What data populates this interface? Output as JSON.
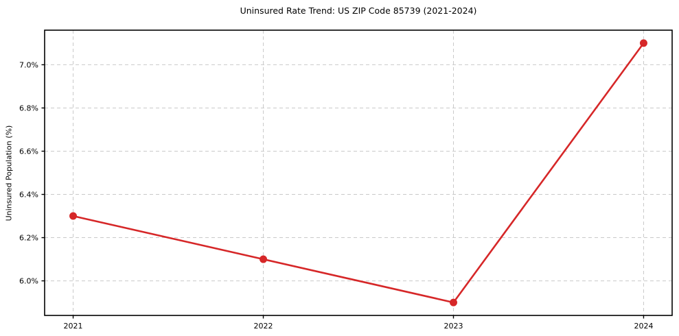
{
  "chart_data": {
    "type": "line",
    "title": "Uninsured Rate Trend: US ZIP Code 85739 (2021-2024)",
    "xlabel": "",
    "ylabel": "Uninsured Population (%)",
    "categories": [
      "2021",
      "2022",
      "2023",
      "2024"
    ],
    "x": [
      2021,
      2022,
      2023,
      2024
    ],
    "series": [
      {
        "name": "Uninsured Rate",
        "values": [
          6.3,
          6.1,
          5.9,
          7.1
        ]
      }
    ],
    "y_ticks": [
      {
        "value": 6.0,
        "label": "6.0%"
      },
      {
        "value": 6.2,
        "label": "6.2%"
      },
      {
        "value": 6.4,
        "label": "6.4%"
      },
      {
        "value": 6.6,
        "label": "6.6%"
      },
      {
        "value": 6.8,
        "label": "6.8%"
      },
      {
        "value": 7.0,
        "label": "7.0%"
      }
    ],
    "xlim": [
      2020.85,
      2024.15
    ],
    "ylim": [
      5.84,
      7.16
    ],
    "grid": true,
    "legend": "none",
    "colors": {
      "line": "#d62728",
      "marker": "#d62728",
      "grid": "#c9c9c9",
      "axis": "#000000",
      "background": "#ffffff"
    }
  }
}
